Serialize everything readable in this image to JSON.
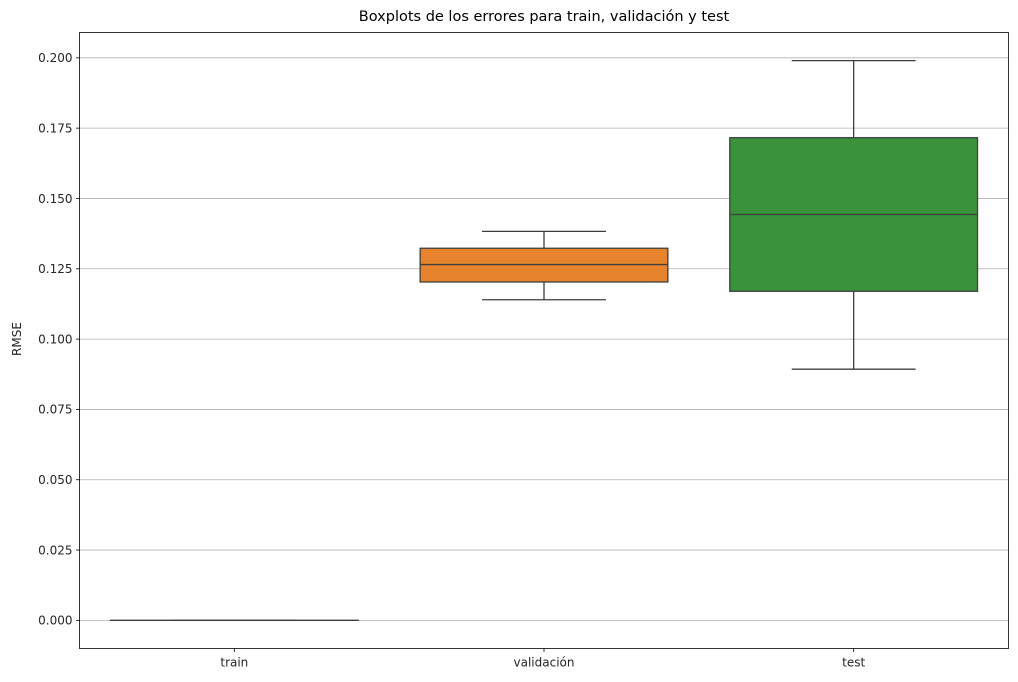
{
  "chart_data": {
    "type": "box",
    "title": "Boxplots de los errores para train, validación y test",
    "xlabel": "",
    "ylabel": "RMSE",
    "ylim": [
      -0.01,
      0.209
    ],
    "yticks": [
      0.0,
      0.025,
      0.05,
      0.075,
      0.1,
      0.125,
      0.15,
      0.175,
      0.2
    ],
    "ytick_labels": [
      "0.000",
      "0.025",
      "0.050",
      "0.075",
      "0.100",
      "0.125",
      "0.150",
      "0.175",
      "0.200"
    ],
    "grid": "horizontal",
    "categories": [
      "train",
      "validación",
      "test"
    ],
    "boxes": [
      {
        "category": "train",
        "min": 0.0,
        "q1": 0.0,
        "median": 0.0,
        "q3": 0.0,
        "max": 0.0,
        "color": "#1f77b4"
      },
      {
        "category": "validación",
        "min": 0.114,
        "q1": 0.1203,
        "median": 0.1265,
        "q3": 0.1323,
        "max": 0.1383,
        "color": "#e6832c"
      },
      {
        "category": "test",
        "min": 0.0893,
        "q1": 0.117,
        "median": 0.1443,
        "q3": 0.1716,
        "max": 0.199,
        "color": "#3a923a"
      }
    ]
  }
}
